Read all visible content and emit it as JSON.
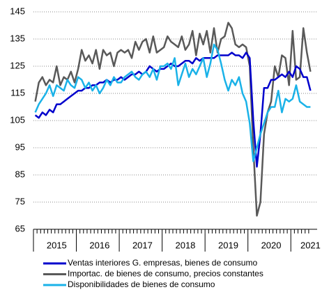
{
  "chart_data": {
    "type": "line",
    "categories": [
      null,
      null,
      null,
      null,
      null,
      null,
      "2015",
      null,
      null,
      null,
      null,
      null,
      null,
      null,
      null,
      null,
      null,
      null,
      "2016",
      null,
      null,
      null,
      null,
      null,
      null,
      null,
      null,
      null,
      null,
      null,
      "2017",
      null,
      null,
      null,
      null,
      null,
      null,
      null,
      null,
      null,
      null,
      null,
      "2018",
      null,
      null,
      null,
      null,
      null,
      null,
      null,
      null,
      null,
      null,
      null,
      "2019",
      null,
      null,
      null,
      null,
      null,
      null,
      null,
      null,
      null,
      null,
      null,
      "2020",
      null,
      null,
      null,
      null,
      null,
      null,
      null,
      null,
      null,
      null,
      "2021"
    ],
    "series": [
      {
        "name": "Ventas interiores G. empresas, bienes de consumo",
        "color": "#0000cc",
        "values": [
          107,
          106,
          108,
          107,
          109,
          108,
          111,
          111,
          112,
          113,
          114,
          115,
          116,
          116,
          117,
          117,
          118,
          118,
          119,
          119,
          120,
          119,
          120,
          120,
          121,
          120,
          121,
          122,
          122,
          123,
          122,
          123,
          125,
          124,
          123,
          124,
          124,
          125,
          126,
          125,
          125,
          126,
          127,
          127,
          126,
          128,
          127,
          128,
          128,
          128,
          128,
          129,
          129,
          129,
          129,
          130,
          129,
          129,
          128,
          130,
          128,
          105,
          88,
          100,
          117,
          117,
          120,
          120,
          121,
          122,
          121,
          123,
          121,
          125,
          124,
          121,
          121,
          116
        ]
      },
      {
        "name": "Importac. de bienes de consumo, precios constantes",
        "color": "#595959",
        "values": [
          112,
          119,
          121,
          118,
          120,
          119,
          125,
          118,
          121,
          120,
          123,
          119,
          124,
          131,
          127,
          129,
          126,
          131,
          124,
          131,
          129,
          130,
          125,
          130,
          131,
          130,
          131,
          128,
          134,
          131,
          134,
          135,
          130,
          136,
          130,
          131,
          132,
          136,
          134,
          133,
          132,
          136,
          131,
          133,
          138,
          129,
          137,
          133,
          138,
          130,
          139,
          130,
          135,
          136,
          141,
          139,
          133,
          132,
          133,
          132,
          125,
          95,
          70,
          75,
          100,
          108,
          112,
          125,
          121,
          129,
          128,
          118,
          138,
          120,
          121,
          139,
          130,
          123
        ]
      },
      {
        "name": "Disponibilidades de bienes de consumo",
        "color": "#1ab2e8",
        "values": [
          108,
          111,
          113,
          115,
          118,
          114,
          118,
          117,
          116,
          120,
          118,
          117,
          121,
          120,
          117,
          119,
          116,
          118,
          115,
          117,
          120,
          118,
          121,
          119,
          119,
          121,
          122,
          123,
          121,
          120,
          122,
          123,
          121,
          124,
          120,
          125,
          125,
          126,
          124,
          128,
          118,
          122,
          126,
          121,
          124,
          122,
          125,
          128,
          121,
          126,
          133,
          131,
          126,
          120,
          116,
          120,
          118,
          121,
          115,
          112,
          104,
          90,
          95,
          100,
          104,
          108,
          110,
          110,
          116,
          108,
          113,
          112,
          113,
          118,
          112,
          111,
          110,
          110
        ]
      }
    ],
    "ylim": [
      65,
      145
    ],
    "yticks": [
      65,
      75,
      85,
      95,
      105,
      115,
      125,
      135,
      145
    ],
    "grid": true
  }
}
